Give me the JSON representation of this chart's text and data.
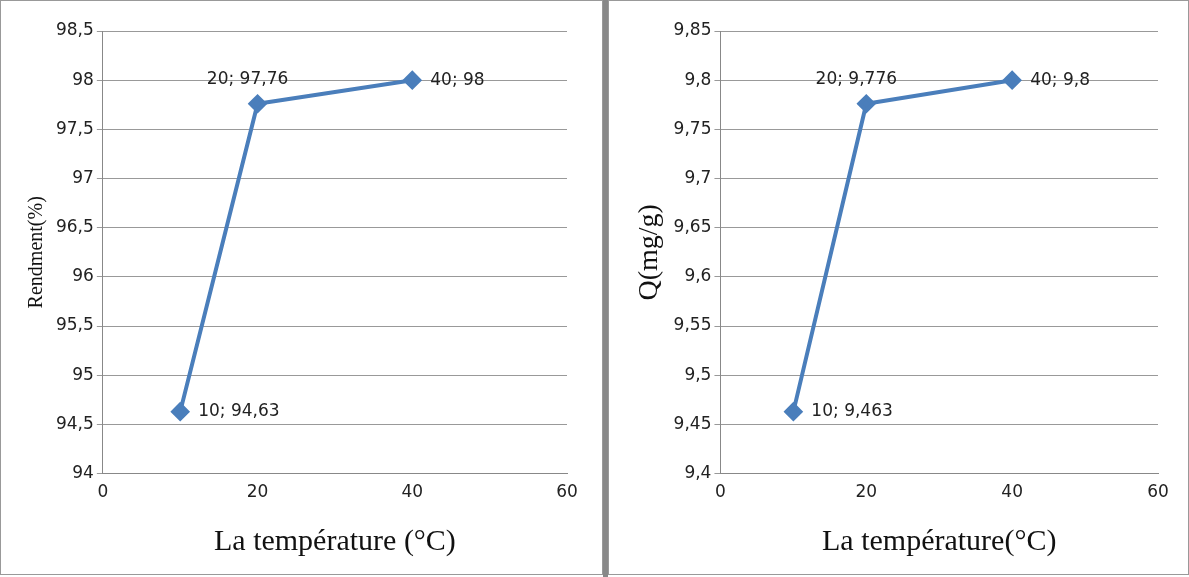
{
  "chart_data": [
    {
      "type": "line",
      "xlabel": "La température (°C)",
      "ylabel": "Rendment(%)",
      "x": [
        10,
        20,
        40
      ],
      "series": [
        {
          "color": "#4a7ebb",
          "values": [
            94.63,
            97.76,
            98
          ],
          "value_labels": [
            "10; 94,63",
            "20; 97,76",
            "40; 98"
          ]
        }
      ],
      "xlim": [
        0,
        60
      ],
      "xticks": [
        0,
        20,
        40,
        60
      ],
      "ylim": [
        94,
        98.5
      ],
      "yticks": [
        94,
        {
          "value": 94.5,
          "label": "94,5"
        },
        95,
        {
          "value": 95.5,
          "label": "95,5"
        },
        96,
        {
          "value": 96.5,
          "label": "96,5"
        },
        97,
        {
          "value": 97.5,
          "label": "97,5"
        },
        98,
        {
          "value": 98.5,
          "label": "98,5"
        }
      ],
      "grid": "y",
      "marker": "diamond",
      "line_style": "solid",
      "legend": false
    },
    {
      "type": "line",
      "xlabel": "La température(°C)",
      "ylabel": "Q(mg/g)",
      "x": [
        10,
        20,
        40
      ],
      "series": [
        {
          "color": "#4a7ebb",
          "values": [
            9.463,
            9.776,
            9.8
          ],
          "value_labels": [
            "10; 9,463",
            "20; 9,776",
            "40; 9,8"
          ]
        }
      ],
      "xlim": [
        0,
        60
      ],
      "xticks": [
        0,
        20,
        40,
        60
      ],
      "ylim": [
        9.4,
        9.85
      ],
      "yticks": [
        {
          "value": 9.4,
          "label": "9,4"
        },
        {
          "value": 9.45,
          "label": "9,45"
        },
        {
          "value": 9.5,
          "label": "9,5"
        },
        {
          "value": 9.55,
          "label": "9,55"
        },
        {
          "value": 9.6,
          "label": "9,6"
        },
        {
          "value": 9.65,
          "label": "9,65"
        },
        {
          "value": 9.7,
          "label": "9,7"
        },
        {
          "value": 9.75,
          "label": "9,75"
        },
        {
          "value": 9.8,
          "label": "9,8"
        },
        {
          "value": 9.85,
          "label": "9,85"
        }
      ],
      "grid": "y",
      "marker": "diamond",
      "line_style": "solid",
      "legend": false
    }
  ]
}
